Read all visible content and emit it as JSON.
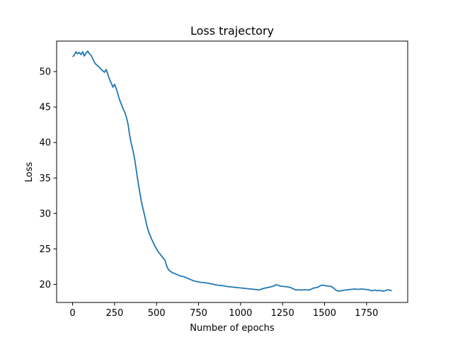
{
  "chart_data": {
    "type": "line",
    "title": "Loss trajectory",
    "xlabel": "Number of epochs",
    "ylabel": "Loss",
    "xlim": [
      -95,
      1995
    ],
    "ylim": [
      17.45,
      54.3
    ],
    "grid": false,
    "legend": "none",
    "xticks": [
      0,
      250,
      500,
      750,
      1000,
      1250,
      1500,
      1750
    ],
    "yticks": [
      20,
      25,
      30,
      35,
      40,
      45,
      50
    ],
    "series": [
      {
        "color": "#1f77b4",
        "points": [
          [
            0,
            52.1
          ],
          [
            10,
            52.3
          ],
          [
            20,
            52.8
          ],
          [
            30,
            52.5
          ],
          [
            40,
            52.7
          ],
          [
            50,
            52.4
          ],
          [
            60,
            52.8
          ],
          [
            70,
            52.2
          ],
          [
            80,
            52.6
          ],
          [
            90,
            52.9
          ],
          [
            100,
            52.5
          ],
          [
            110,
            52.3
          ],
          [
            120,
            51.8
          ],
          [
            130,
            51.3
          ],
          [
            140,
            51.0
          ],
          [
            150,
            50.8
          ],
          [
            160,
            50.6
          ],
          [
            170,
            50.3
          ],
          [
            180,
            50.1
          ],
          [
            190,
            49.9
          ],
          [
            200,
            50.3
          ],
          [
            210,
            49.6
          ],
          [
            220,
            48.9
          ],
          [
            230,
            48.4
          ],
          [
            240,
            47.8
          ],
          [
            250,
            48.2
          ],
          [
            260,
            47.6
          ],
          [
            270,
            46.8
          ],
          [
            280,
            46.0
          ],
          [
            290,
            45.4
          ],
          [
            300,
            44.8
          ],
          [
            310,
            44.3
          ],
          [
            320,
            43.6
          ],
          [
            330,
            42.6
          ],
          [
            340,
            41.0
          ],
          [
            350,
            39.8
          ],
          [
            360,
            38.8
          ],
          [
            370,
            37.6
          ],
          [
            380,
            36.0
          ],
          [
            390,
            34.4
          ],
          [
            400,
            33.0
          ],
          [
            410,
            31.6
          ],
          [
            420,
            30.6
          ],
          [
            430,
            29.6
          ],
          [
            440,
            28.5
          ],
          [
            450,
            27.6
          ],
          [
            460,
            27.0
          ],
          [
            470,
            26.4
          ],
          [
            480,
            25.9
          ],
          [
            490,
            25.4
          ],
          [
            500,
            25.0
          ],
          [
            510,
            24.6
          ],
          [
            520,
            24.3
          ],
          [
            530,
            24.0
          ],
          [
            540,
            23.7
          ],
          [
            550,
            23.4
          ],
          [
            560,
            22.6
          ],
          [
            570,
            22.1
          ],
          [
            580,
            21.9
          ],
          [
            590,
            21.7
          ],
          [
            600,
            21.6
          ],
          [
            620,
            21.4
          ],
          [
            640,
            21.2
          ],
          [
            660,
            21.1
          ],
          [
            680,
            20.9
          ],
          [
            700,
            20.7
          ],
          [
            720,
            20.5
          ],
          [
            740,
            20.4
          ],
          [
            760,
            20.3
          ],
          [
            780,
            20.25
          ],
          [
            800,
            20.2
          ],
          [
            820,
            20.1
          ],
          [
            840,
            20.0
          ],
          [
            860,
            19.9
          ],
          [
            880,
            19.85
          ],
          [
            900,
            19.8
          ],
          [
            920,
            19.7
          ],
          [
            940,
            19.65
          ],
          [
            960,
            19.6
          ],
          [
            980,
            19.55
          ],
          [
            1000,
            19.5
          ],
          [
            1020,
            19.45
          ],
          [
            1040,
            19.4
          ],
          [
            1060,
            19.35
          ],
          [
            1080,
            19.3
          ],
          [
            1100,
            19.25
          ],
          [
            1110,
            19.2
          ],
          [
            1120,
            19.3
          ],
          [
            1140,
            19.45
          ],
          [
            1160,
            19.55
          ],
          [
            1180,
            19.65
          ],
          [
            1200,
            19.8
          ],
          [
            1210,
            19.95
          ],
          [
            1220,
            19.9
          ],
          [
            1240,
            19.75
          ],
          [
            1260,
            19.7
          ],
          [
            1280,
            19.65
          ],
          [
            1300,
            19.55
          ],
          [
            1310,
            19.4
          ],
          [
            1320,
            19.3
          ],
          [
            1330,
            19.2
          ],
          [
            1340,
            19.25
          ],
          [
            1360,
            19.2
          ],
          [
            1380,
            19.25
          ],
          [
            1400,
            19.2
          ],
          [
            1420,
            19.3
          ],
          [
            1430,
            19.45
          ],
          [
            1440,
            19.5
          ],
          [
            1460,
            19.6
          ],
          [
            1470,
            19.75
          ],
          [
            1480,
            19.85
          ],
          [
            1490,
            19.9
          ],
          [
            1500,
            19.85
          ],
          [
            1520,
            19.75
          ],
          [
            1540,
            19.7
          ],
          [
            1550,
            19.55
          ],
          [
            1560,
            19.35
          ],
          [
            1570,
            19.15
          ],
          [
            1580,
            19.05
          ],
          [
            1600,
            19.1
          ],
          [
            1620,
            19.2
          ],
          [
            1640,
            19.25
          ],
          [
            1660,
            19.3
          ],
          [
            1680,
            19.35
          ],
          [
            1700,
            19.3
          ],
          [
            1720,
            19.35
          ],
          [
            1740,
            19.3
          ],
          [
            1760,
            19.25
          ],
          [
            1770,
            19.2
          ],
          [
            1780,
            19.1
          ],
          [
            1790,
            19.15
          ],
          [
            1800,
            19.2
          ],
          [
            1810,
            19.1
          ],
          [
            1820,
            19.15
          ],
          [
            1840,
            19.1
          ],
          [
            1850,
            19.05
          ],
          [
            1860,
            19.1
          ],
          [
            1870,
            19.2
          ],
          [
            1880,
            19.25
          ],
          [
            1890,
            19.15
          ],
          [
            1900,
            19.1
          ]
        ]
      }
    ]
  }
}
